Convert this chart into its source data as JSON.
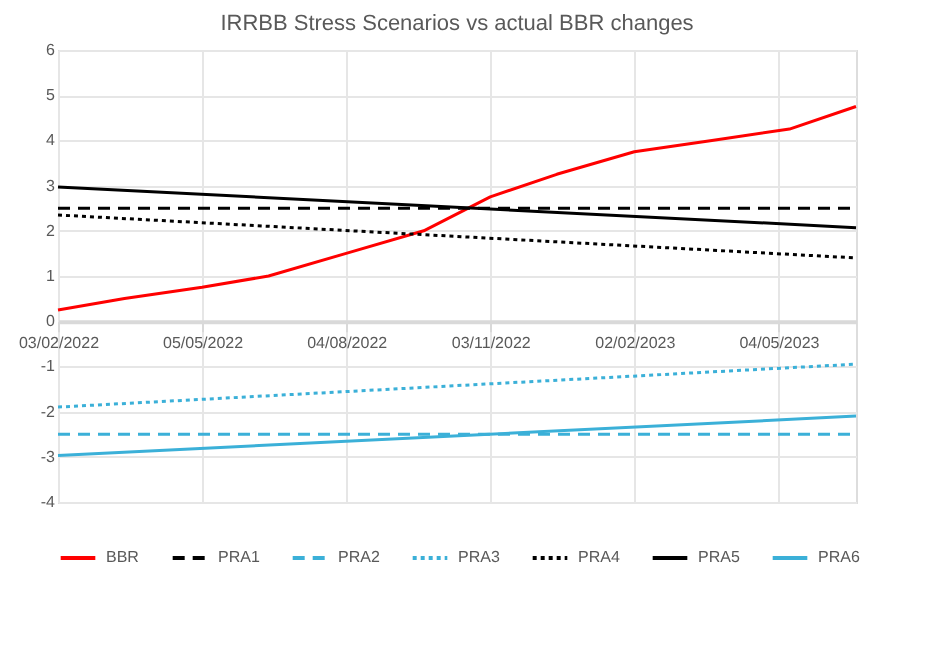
{
  "chart_data": {
    "type": "line",
    "title": "IRRBB Stress Scenarios vs actual BBR changes",
    "xlim": [
      "2022-02-03",
      "2023-06-22"
    ],
    "xticks": [
      {
        "value": "2022-02-03",
        "label": "03/02/2022"
      },
      {
        "value": "2022-05-05",
        "label": "05/05/2022"
      },
      {
        "value": "2022-08-04",
        "label": "04/08/2022"
      },
      {
        "value": "2022-11-03",
        "label": "03/11/2022"
      },
      {
        "value": "2023-02-02",
        "label": "02/02/2023"
      },
      {
        "value": "2023-05-04",
        "label": "04/05/2023"
      }
    ],
    "ylim": [
      -4,
      6
    ],
    "yticks": [
      -4,
      -3,
      -2,
      -1,
      0,
      1,
      2,
      3,
      4,
      5,
      6
    ],
    "grid": true,
    "legend": "bottom",
    "marker": "none",
    "series": [
      {
        "name": "BBR",
        "color": "#ff0000",
        "line_style": "solid",
        "x": [
          "2022-02-03",
          "2022-03-17",
          "2022-05-05",
          "2022-06-16",
          "2022-08-04",
          "2022-09-22",
          "2022-11-03",
          "2022-12-15",
          "2023-02-02",
          "2023-03-23",
          "2023-05-11",
          "2023-06-22"
        ],
        "values": [
          0.25,
          0.5,
          0.75,
          1,
          1.5,
          2,
          2.75,
          3.25,
          3.75,
          4,
          4.25,
          4.75
        ]
      },
      {
        "name": "PRA1",
        "color": "#000000",
        "line_style": "dashed",
        "x": [
          "2022-02-03",
          "2023-06-22"
        ],
        "values": [
          2.5,
          2.5
        ]
      },
      {
        "name": "PRA2",
        "color": "#3bb0d8",
        "line_style": "dashed",
        "x": [
          "2022-02-03",
          "2023-06-22"
        ],
        "values": [
          -2.5,
          -2.5
        ]
      },
      {
        "name": "PRA3",
        "color": "#3bb0d8",
        "line_style": "dotted",
        "x": [
          "2022-02-03",
          "2023-06-22"
        ],
        "values": [
          -1.9,
          -0.95
        ]
      },
      {
        "name": "PRA4",
        "color": "#000000",
        "line_style": "dotted",
        "x": [
          "2022-02-03",
          "2023-06-22"
        ],
        "values": [
          2.35,
          1.4
        ]
      },
      {
        "name": "PRA5",
        "color": "#000000",
        "line_style": "solid",
        "x": [
          "2022-02-03",
          "2023-06-22"
        ],
        "values": [
          2.97,
          2.07
        ]
      },
      {
        "name": "PRA6",
        "color": "#3bb0d8",
        "line_style": "solid",
        "x": [
          "2022-02-03",
          "2023-06-22"
        ],
        "values": [
          -2.97,
          -2.1
        ]
      }
    ]
  }
}
